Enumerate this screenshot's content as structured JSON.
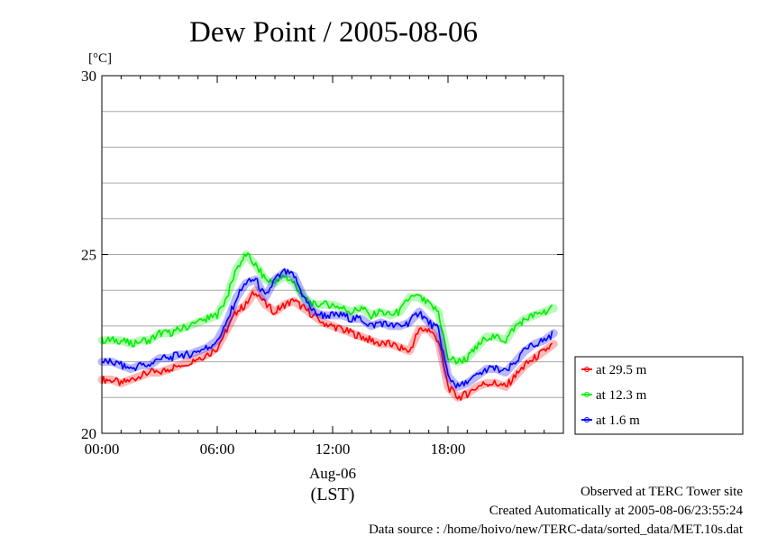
{
  "chart_data": {
    "type": "line",
    "title": "Dew Point / 2005-08-06",
    "ylabel": "[°C]",
    "xlabel_date": "Aug-06",
    "xlabel_zone": "(LST)",
    "ylim": [
      20,
      30
    ],
    "y_ticks": [
      "20",
      "25",
      "30"
    ],
    "y_tick_values": [
      20,
      25,
      30
    ],
    "y_gridlines": [
      21,
      22,
      23,
      24,
      25,
      26,
      27,
      28,
      29
    ],
    "xlim_hours": [
      0,
      24
    ],
    "x_ticks": [
      "00:00",
      "06:00",
      "12:00",
      "18:00"
    ],
    "x_tick_hours": [
      0,
      6,
      12,
      18
    ],
    "grid": "horizontal",
    "legend_position": "right",
    "x_hours": [
      0,
      0.5,
      1,
      1.5,
      2,
      2.5,
      3,
      3.5,
      4,
      4.5,
      5,
      5.5,
      6,
      6.5,
      7,
      7.5,
      8,
      8.5,
      9,
      9.5,
      10,
      10.5,
      11,
      11.5,
      12,
      12.5,
      13,
      13.5,
      14,
      14.5,
      15,
      15.5,
      16,
      16.5,
      17,
      17.5,
      18,
      18.5,
      19,
      19.5,
      20,
      20.5,
      21,
      21.5,
      22,
      22.5,
      23,
      23.5
    ],
    "series": [
      {
        "name": "at 29.5 m",
        "color": "#ff0000",
        "values": [
          21.5,
          21.5,
          21.4,
          21.5,
          21.6,
          21.7,
          21.7,
          21.8,
          21.9,
          22.0,
          22.1,
          22.2,
          22.4,
          22.9,
          23.4,
          23.6,
          24.0,
          23.6,
          23.4,
          23.6,
          23.7,
          23.5,
          23.3,
          23.1,
          23.0,
          22.9,
          22.8,
          22.7,
          22.6,
          22.5,
          22.5,
          22.4,
          22.3,
          22.9,
          22.9,
          22.6,
          21.3,
          21.0,
          21.1,
          21.3,
          21.4,
          21.4,
          21.3,
          21.6,
          21.9,
          22.1,
          22.3,
          22.5
        ]
      },
      {
        "name": "at 12.3 m",
        "color": "#00ee00",
        "values": [
          22.6,
          22.6,
          22.6,
          22.5,
          22.6,
          22.6,
          22.8,
          22.8,
          22.9,
          23.0,
          23.1,
          23.2,
          23.3,
          23.8,
          24.6,
          25.0,
          24.7,
          24.3,
          24.2,
          24.4,
          24.2,
          23.8,
          23.6,
          23.6,
          23.6,
          23.5,
          23.4,
          23.5,
          23.3,
          23.4,
          23.3,
          23.4,
          23.8,
          23.8,
          23.6,
          23.4,
          22.1,
          22.0,
          22.1,
          22.4,
          22.7,
          22.7,
          22.6,
          23.0,
          23.2,
          23.3,
          23.4,
          23.5
        ]
      },
      {
        "name": "at 1.6 m",
        "color": "#0000ff",
        "values": [
          22.0,
          22.0,
          21.9,
          21.8,
          21.9,
          21.9,
          22.1,
          22.1,
          22.2,
          22.2,
          22.3,
          22.4,
          22.6,
          23.1,
          23.8,
          24.2,
          24.3,
          23.8,
          24.3,
          24.5,
          24.4,
          23.8,
          23.4,
          23.3,
          23.3,
          23.3,
          23.2,
          23.2,
          23.0,
          23.1,
          23.0,
          23.0,
          23.1,
          23.4,
          23.1,
          22.9,
          21.6,
          21.3,
          21.4,
          21.6,
          21.8,
          21.8,
          21.7,
          22.0,
          22.3,
          22.5,
          22.6,
          22.8
        ]
      }
    ]
  },
  "footer": {
    "line1": "Observed at TERC Tower site",
    "line2": "Created Automatically at 2005-08-06/23:55:24",
    "line3": "Data source : /home/hoivo/new/TERC-data/sorted_data/MET.10s.dat"
  }
}
